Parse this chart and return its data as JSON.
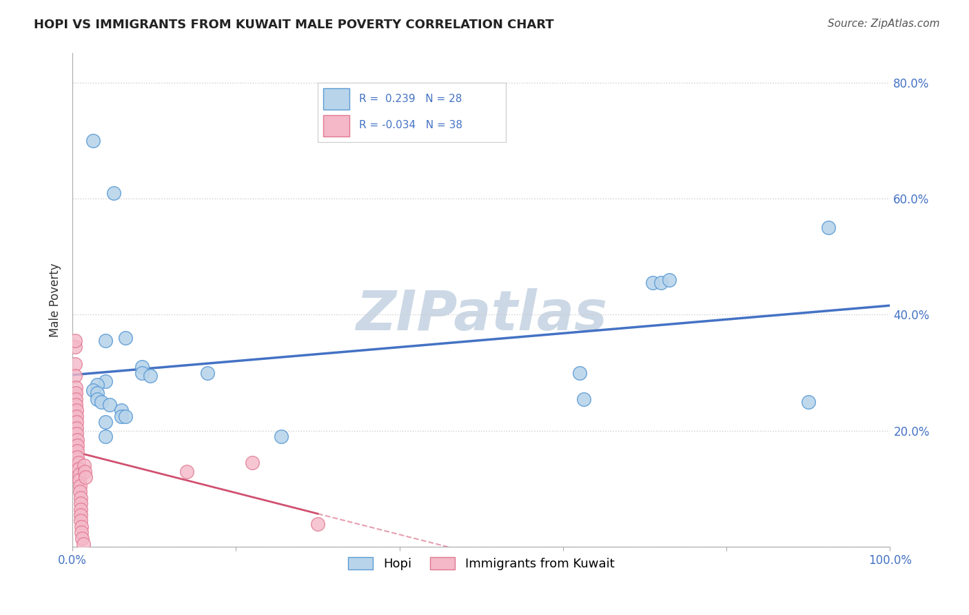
{
  "title": "HOPI VS IMMIGRANTS FROM KUWAIT MALE POVERTY CORRELATION CHART",
  "source": "Source: ZipAtlas.com",
  "ylabel": "Male Poverty",
  "xlim": [
    0.0,
    1.0
  ],
  "ylim": [
    0.0,
    0.85
  ],
  "yticks": [
    0.0,
    0.2,
    0.4,
    0.6,
    0.8
  ],
  "ytick_labels_right": [
    "",
    "20.0%",
    "40.0%",
    "60.0%",
    "80.0%"
  ],
  "hopi_R": 0.239,
  "hopi_N": 28,
  "kuwait_R": -0.034,
  "kuwait_N": 38,
  "hopi_color": "#b8d4ea",
  "hopi_edge_color": "#5b9bd5",
  "hopi_line_color": "#4472c4",
  "kuwait_color": "#f4b8c8",
  "kuwait_edge_color": "#e07890",
  "kuwait_line_color": "#d05070",
  "hopi_x": [
    0.025,
    0.05,
    0.04,
    0.065,
    0.085,
    0.085,
    0.095,
    0.04,
    0.03,
    0.025,
    0.03,
    0.03,
    0.035,
    0.045,
    0.06,
    0.06,
    0.065,
    0.04,
    0.04,
    0.165,
    0.255,
    0.62,
    0.625,
    0.71,
    0.72,
    0.73,
    0.9,
    0.925
  ],
  "hopi_y": [
    0.7,
    0.61,
    0.355,
    0.36,
    0.31,
    0.3,
    0.295,
    0.285,
    0.28,
    0.27,
    0.265,
    0.255,
    0.25,
    0.245,
    0.235,
    0.225,
    0.225,
    0.215,
    0.19,
    0.3,
    0.19,
    0.3,
    0.255,
    0.455,
    0.455,
    0.46,
    0.25,
    0.55
  ],
  "kuwait_x": [
    0.003,
    0.003,
    0.003,
    0.004,
    0.004,
    0.004,
    0.004,
    0.005,
    0.005,
    0.005,
    0.005,
    0.005,
    0.006,
    0.006,
    0.006,
    0.006,
    0.007,
    0.007,
    0.008,
    0.008,
    0.009,
    0.009,
    0.01,
    0.01,
    0.01,
    0.01,
    0.01,
    0.011,
    0.011,
    0.012,
    0.013,
    0.014,
    0.015,
    0.016,
    0.14,
    0.22,
    0.3,
    0.003
  ],
  "kuwait_y": [
    0.345,
    0.315,
    0.295,
    0.275,
    0.265,
    0.255,
    0.245,
    0.235,
    0.225,
    0.215,
    0.205,
    0.195,
    0.185,
    0.175,
    0.165,
    0.155,
    0.145,
    0.135,
    0.125,
    0.115,
    0.105,
    0.095,
    0.085,
    0.075,
    0.065,
    0.055,
    0.045,
    0.035,
    0.025,
    0.015,
    0.005,
    0.14,
    0.13,
    0.12,
    0.13,
    0.145,
    0.04,
    0.355
  ],
  "background_color": "#ffffff",
  "watermark_text": "ZIPatlas",
  "watermark_color": "#ccd8e5",
  "grid_color": "#cccccc",
  "legend_text_color": "#4472c4",
  "title_color": "#222222",
  "source_color": "#555555"
}
